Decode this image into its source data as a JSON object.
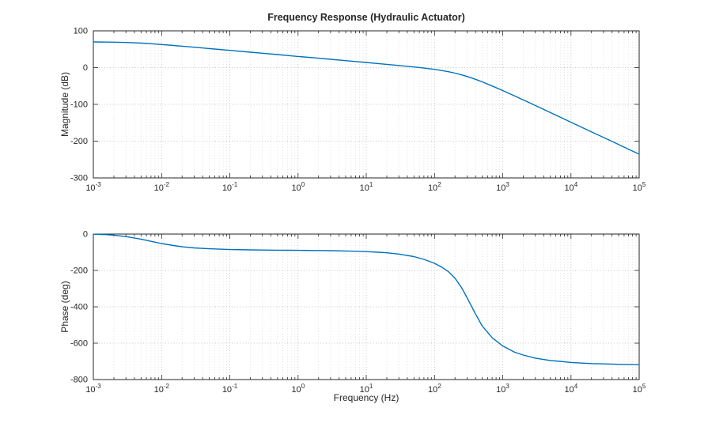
{
  "figure": {
    "background": "#ffffff",
    "line_color": "#0072BD",
    "axis_color": "#262626",
    "grid_color": "#b5b5b5",
    "minor_grid_color": "#dcdcdc"
  },
  "chart_data": [
    {
      "type": "line",
      "name": "magnitude",
      "title": "Frequency Response (Hydraulic Actuator)",
      "ylabel": "Magnitude (dB)",
      "xlabel": "",
      "xscale": "log",
      "grid": true,
      "xlim": [
        0.001,
        100000
      ],
      "xlim_exp": [
        -3,
        5
      ],
      "ylim": [
        -300,
        100
      ],
      "yticks": [
        100,
        0,
        -100,
        -200,
        -300
      ],
      "xtick_exponents": [
        -3,
        -2,
        -1,
        0,
        1,
        2,
        3,
        4,
        5
      ],
      "x": [
        0.001,
        0.0015,
        0.002,
        0.003,
        0.005,
        0.007,
        0.01,
        0.015,
        0.02,
        0.03,
        0.05,
        0.07,
        0.1,
        0.2,
        0.3,
        0.5,
        0.7,
        1,
        2,
        3,
        5,
        7,
        10,
        15,
        20,
        30,
        50,
        70,
        100,
        130,
        160,
        200,
        250,
        300,
        400,
        500,
        700,
        1000,
        1500,
        2000,
        3000,
        5000,
        7000,
        10000,
        20000,
        30000,
        50000,
        70000,
        100000
      ],
      "y": [
        69.8,
        69.5,
        69.2,
        68.4,
        66.6,
        65.0,
        62.9,
        60.3,
        58.3,
        55.5,
        51.9,
        49.5,
        46.9,
        42.0,
        39.1,
        35.4,
        33.0,
        30.4,
        25.5,
        22.6,
        18.9,
        16.5,
        13.9,
        11.0,
        8.9,
        5.8,
        1.8,
        -1.2,
        -4.8,
        -8.1,
        -11.2,
        -15.1,
        -19.7,
        -24.1,
        -31.9,
        -38.7,
        -49.9,
        -62.4,
        -77.3,
        -87.9,
        -103.1,
        -122.4,
        -135.0,
        -148.5,
        -174.7,
        -190.0,
        -209.3,
        -222.0,
        -235.5
      ]
    },
    {
      "type": "line",
      "name": "phase",
      "title": "",
      "ylabel": "Phase (deg)",
      "xlabel": "Frequency (Hz)",
      "xscale": "log",
      "grid": true,
      "xlim": [
        0.001,
        100000
      ],
      "xlim_exp": [
        -3,
        5
      ],
      "ylim": [
        -800,
        0
      ],
      "yticks": [
        0,
        -200,
        -400,
        -600,
        -800
      ],
      "xtick_exponents": [
        -3,
        -2,
        -1,
        0,
        1,
        2,
        3,
        4,
        5
      ],
      "x": [
        0.001,
        0.0015,
        0.002,
        0.003,
        0.005,
        0.007,
        0.01,
        0.015,
        0.02,
        0.03,
        0.05,
        0.07,
        0.1,
        0.2,
        0.3,
        0.5,
        0.7,
        1,
        2,
        3,
        5,
        7,
        10,
        15,
        20,
        30,
        50,
        70,
        100,
        130,
        160,
        200,
        250,
        300,
        400,
        500,
        700,
        1000,
        1500,
        2000,
        3000,
        5000,
        7000,
        10000,
        20000,
        30000,
        50000,
        70000,
        100000
      ],
      "y": [
        -1,
        -3,
        -6,
        -14,
        -28,
        -40,
        -52,
        -63,
        -70,
        -76,
        -81,
        -83,
        -85,
        -87,
        -88,
        -88.5,
        -89,
        -89.5,
        -90.5,
        -91.5,
        -93,
        -94.5,
        -96.5,
        -100,
        -103,
        -110,
        -124,
        -139,
        -161,
        -184,
        -207,
        -243,
        -295,
        -350,
        -440,
        -505,
        -570,
        -615,
        -650,
        -665,
        -682,
        -695,
        -700,
        -706,
        -712,
        -714,
        -716,
        -717,
        -718
      ]
    }
  ]
}
